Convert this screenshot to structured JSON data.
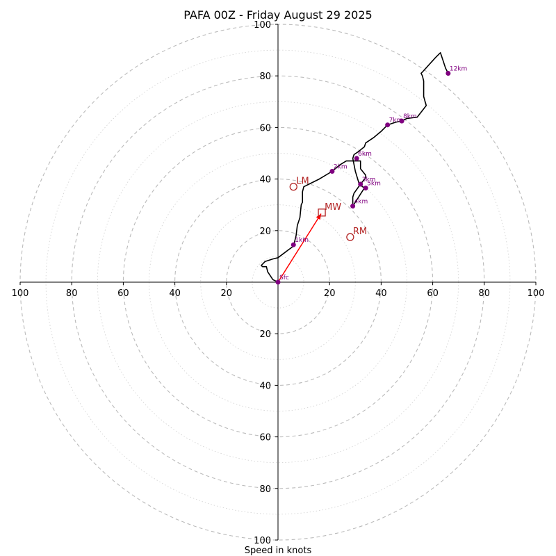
{
  "chart_data": {
    "type": "hodograph",
    "title": "PAFA 00Z - Friday August 29 2025",
    "xlabel": "Speed in knots",
    "axis_range": [
      -100,
      100
    ],
    "ring_ticks": [
      20,
      40,
      60,
      80,
      100
    ],
    "tick_labels": {
      "x": [
        "100",
        "80",
        "60",
        "40",
        "20",
        "20",
        "40",
        "60",
        "80",
        "100"
      ],
      "y": [
        "100",
        "80",
        "60",
        "40",
        "20",
        "20",
        "40",
        "60",
        "80",
        "100"
      ]
    },
    "colors": {
      "trace": "#000000",
      "points": "#800080",
      "motion": "#b22222",
      "mean_wind_vector": "#ff0000",
      "rings": "#bbbbbb"
    },
    "trace": [
      [
        0,
        0
      ],
      [
        -2,
        1
      ],
      [
        -4,
        4
      ],
      [
        -4.5,
        6
      ],
      [
        -6,
        6
      ],
      [
        -6.5,
        6.5
      ],
      [
        -5,
        8
      ],
      [
        -2,
        9
      ],
      [
        0,
        9.5
      ],
      [
        2,
        11
      ],
      [
        4,
        12.5
      ],
      [
        6,
        14
      ],
      [
        7,
        18
      ],
      [
        7.5,
        22
      ],
      [
        8.5,
        25
      ],
      [
        9,
        30
      ],
      [
        9.5,
        31
      ],
      [
        9.5,
        35
      ],
      [
        10,
        37
      ],
      [
        12,
        38
      ],
      [
        16,
        40
      ],
      [
        21,
        43
      ],
      [
        24,
        45.5
      ],
      [
        26.5,
        47
      ],
      [
        32,
        47
      ],
      [
        32,
        44
      ],
      [
        34,
        41.5
      ],
      [
        34,
        40.5
      ],
      [
        32,
        38
      ],
      [
        29.5,
        34.5
      ],
      [
        29,
        33
      ],
      [
        29,
        31
      ],
      [
        29,
        29.5
      ],
      [
        33.5,
        36.5
      ],
      [
        31.5,
        38
      ],
      [
        30,
        43
      ],
      [
        29,
        48
      ],
      [
        29.5,
        49.5
      ],
      [
        31,
        50.5
      ],
      [
        33.5,
        52.5
      ],
      [
        34,
        54
      ],
      [
        37,
        56
      ],
      [
        40,
        58.5
      ],
      [
        42.5,
        61
      ],
      [
        45.5,
        62
      ],
      [
        48,
        62.5
      ],
      [
        50,
        63.5
      ],
      [
        54,
        64
      ],
      [
        57.5,
        68.5
      ],
      [
        56.5,
        72
      ],
      [
        56.5,
        78
      ],
      [
        56,
        80
      ],
      [
        55.5,
        81
      ],
      [
        56,
        81.5
      ],
      [
        61,
        87
      ],
      [
        63,
        89
      ],
      [
        64,
        86
      ],
      [
        65,
        83
      ],
      [
        66,
        81
      ]
    ],
    "height_points": [
      {
        "label": "Sfc",
        "u": 0,
        "v": 0
      },
      {
        "label": "1km",
        "u": 6,
        "v": 14.5
      },
      {
        "label": "2km",
        "u": 21,
        "v": 43
      },
      {
        "label": "3km",
        "u": 32,
        "v": 38
      },
      {
        "label": "4km",
        "u": 29,
        "v": 29.5
      },
      {
        "label": "5km",
        "u": 34,
        "v": 36.5
      },
      {
        "label": "6km",
        "u": 30.5,
        "v": 48
      },
      {
        "label": "7km",
        "u": 42.5,
        "v": 61
      },
      {
        "label": "8km",
        "u": 48,
        "v": 62.5
      },
      {
        "label": "12km",
        "u": 66,
        "v": 81
      }
    ],
    "storm_motion": [
      {
        "label": "LM",
        "u": 6,
        "v": 37,
        "marker": "circle"
      },
      {
        "label": "RM",
        "u": 28,
        "v": 17.5,
        "marker": "circle"
      },
      {
        "label": "MW",
        "u": 17,
        "v": 27,
        "marker": "square"
      }
    ],
    "mean_wind_arrow": {
      "from": [
        0,
        0
      ],
      "to": [
        17,
        27
      ]
    }
  }
}
